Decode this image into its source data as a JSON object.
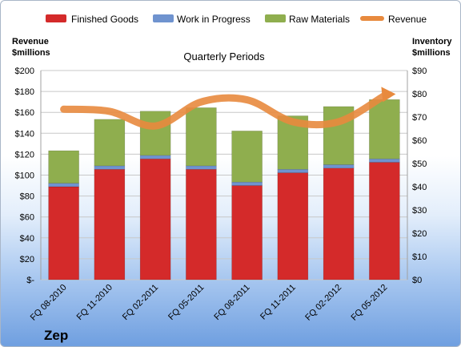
{
  "company": "Zep",
  "colors": {
    "finished_goods": "#d42a2a",
    "work_in_progress": "#6f93cf",
    "raw_materials": "#8fae4e",
    "revenue": "#e88a3e",
    "gridline": "#c8c8c8"
  },
  "chart_data": {
    "type": "bar",
    "subtype": "stacked-bar-with-line",
    "title": "Quarterly Periods",
    "categories": [
      "FQ 08-2010",
      "FQ 11-2010",
      "FQ 02-2011",
      "FQ 05-2011",
      "FQ 08-2011",
      "FQ 11-2011",
      "FQ 02-2012",
      "FQ 05-2012"
    ],
    "left_axis": {
      "label_line1": "Revenue",
      "label_line2": "$millions",
      "ylim": [
        0,
        200
      ],
      "ticks": [
        "$-",
        "$20",
        "$40",
        "$60",
        "$80",
        "$100",
        "$120",
        "$140",
        "$160",
        "$180",
        "$200"
      ]
    },
    "right_axis": {
      "label_line1": "Inventory",
      "label_line2": "$millions",
      "ylim": [
        0,
        90
      ],
      "ticks": [
        "$0",
        "$10",
        "$20",
        "$30",
        "$40",
        "$50",
        "$60",
        "$70",
        "$80",
        "$90"
      ]
    },
    "series": [
      {
        "name": "Finished Goods",
        "axis": "right",
        "values": [
          40,
          47.5,
          52,
          47.5,
          40.5,
          46,
          48,
          50.5
        ]
      },
      {
        "name": "Work in Progress",
        "axis": "right",
        "values": [
          1.5,
          1.5,
          1.5,
          1.5,
          1.5,
          1.5,
          1.5,
          1.5
        ]
      },
      {
        "name": "Raw Materials",
        "axis": "right",
        "values": [
          14,
          20,
          19,
          25,
          22,
          23,
          25,
          25.5
        ]
      },
      {
        "name": "Revenue",
        "axis": "left",
        "type": "line",
        "values": [
          163,
          161,
          147,
          170,
          172,
          151,
          151,
          176
        ]
      }
    ],
    "grid": true,
    "legend_position": "top"
  }
}
